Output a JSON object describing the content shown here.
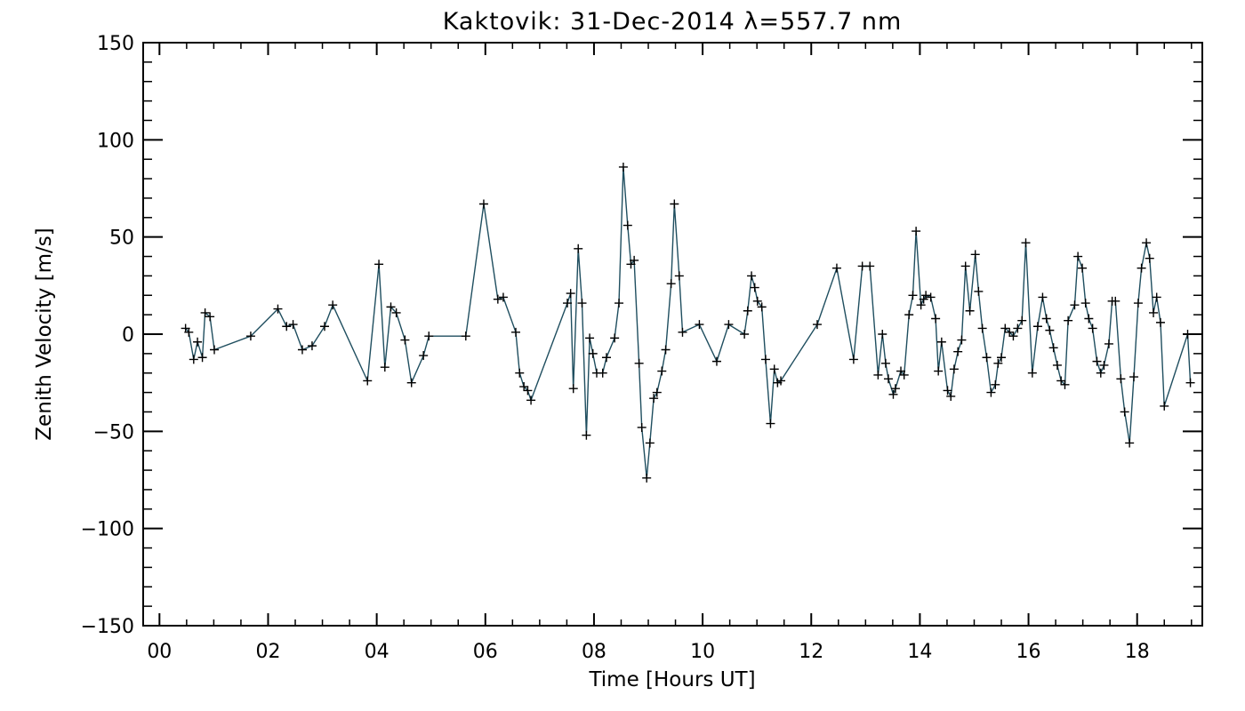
{
  "chart_data": {
    "type": "line",
    "title": "Kaktovik: 31-Dec-2014 λ=557.7 nm",
    "xlabel": "Time [Hours UT]",
    "ylabel": "Zenith Velocity [m/s]",
    "xlim": [
      -0.3,
      19.2
    ],
    "ylim": [
      -150,
      150
    ],
    "x_ticks": [
      {
        "value": 0,
        "label": "00"
      },
      {
        "value": 2,
        "label": "02"
      },
      {
        "value": 4,
        "label": "04"
      },
      {
        "value": 6,
        "label": "06"
      },
      {
        "value": 8,
        "label": "08"
      },
      {
        "value": 10,
        "label": "10"
      },
      {
        "value": 12,
        "label": "12"
      },
      {
        "value": 14,
        "label": "14"
      },
      {
        "value": 16,
        "label": "16"
      },
      {
        "value": 18,
        "label": "18"
      }
    ],
    "y_ticks": [
      {
        "value": 150,
        "label": "150"
      },
      {
        "value": 100,
        "label": "100"
      },
      {
        "value": 50,
        "label": "50"
      },
      {
        "value": 0,
        "label": "0"
      },
      {
        "value": -50,
        "label": "−50"
      },
      {
        "value": -100,
        "label": "−100"
      },
      {
        "value": -150,
        "label": "−150"
      }
    ],
    "grid": false,
    "legend": "none",
    "marker": "plus",
    "colors": {
      "line": "#1f4e5f",
      "marker": "#000000",
      "axes": "#000000"
    },
    "series": [
      {
        "points": [
          [
            0.48,
            3
          ],
          [
            0.54,
            1
          ],
          [
            0.63,
            -13
          ],
          [
            0.7,
            -4
          ],
          [
            0.79,
            -12
          ],
          [
            0.84,
            11
          ],
          [
            0.93,
            9
          ],
          [
            1.01,
            -8
          ],
          [
            1.68,
            -1
          ],
          [
            2.18,
            13
          ],
          [
            2.34,
            4
          ],
          [
            2.46,
            5
          ],
          [
            2.63,
            -8
          ],
          [
            2.81,
            -6
          ],
          [
            3.04,
            4
          ],
          [
            3.19,
            15
          ],
          [
            3.83,
            -24
          ],
          [
            4.04,
            36
          ],
          [
            4.15,
            -17
          ],
          [
            4.26,
            14
          ],
          [
            4.36,
            11
          ],
          [
            4.52,
            -3
          ],
          [
            4.64,
            -25
          ],
          [
            4.86,
            -11
          ],
          [
            4.96,
            -1
          ],
          [
            5.64,
            -1
          ],
          [
            5.97,
            67
          ],
          [
            6.23,
            18
          ],
          [
            6.33,
            19
          ],
          [
            6.56,
            1
          ],
          [
            6.63,
            -20
          ],
          [
            6.71,
            -27
          ],
          [
            6.78,
            -29
          ],
          [
            6.84,
            -34
          ],
          [
            7.51,
            16
          ],
          [
            7.57,
            21
          ],
          [
            7.62,
            -28
          ],
          [
            7.71,
            44
          ],
          [
            7.78,
            16
          ],
          [
            7.86,
            -52
          ],
          [
            7.92,
            -2
          ],
          [
            7.98,
            -10
          ],
          [
            8.05,
            -20
          ],
          [
            8.16,
            -20
          ],
          [
            8.23,
            -12
          ],
          [
            8.38,
            -2
          ],
          [
            8.46,
            16
          ],
          [
            8.54,
            86
          ],
          [
            8.62,
            56
          ],
          [
            8.68,
            36
          ],
          [
            8.74,
            38
          ],
          [
            8.83,
            -15
          ],
          [
            8.88,
            -48
          ],
          [
            8.97,
            -74
          ],
          [
            9.03,
            -56
          ],
          [
            9.1,
            -33
          ],
          [
            9.16,
            -30
          ],
          [
            9.25,
            -19
          ],
          [
            9.32,
            -8
          ],
          [
            9.42,
            26
          ],
          [
            9.48,
            67
          ],
          [
            9.57,
            30
          ],
          [
            9.63,
            1
          ],
          [
            9.94,
            5
          ],
          [
            10.26,
            -14
          ],
          [
            10.48,
            5
          ],
          [
            10.77,
            0
          ],
          [
            10.83,
            12
          ],
          [
            10.9,
            30
          ],
          [
            10.96,
            24
          ],
          [
            11.01,
            17
          ],
          [
            11.09,
            14
          ],
          [
            11.16,
            -13
          ],
          [
            11.25,
            -46
          ],
          [
            11.32,
            -18
          ],
          [
            11.38,
            -25
          ],
          [
            11.44,
            -24
          ],
          [
            12.11,
            5
          ],
          [
            12.47,
            34
          ],
          [
            12.78,
            -13
          ],
          [
            12.94,
            35
          ],
          [
            13.08,
            35
          ],
          [
            13.23,
            -21
          ],
          [
            13.31,
            0
          ],
          [
            13.37,
            -15
          ],
          [
            13.42,
            -23
          ],
          [
            13.51,
            -31
          ],
          [
            13.55,
            -28
          ],
          [
            13.65,
            -19
          ],
          [
            13.71,
            -21
          ],
          [
            13.8,
            10
          ],
          [
            13.87,
            20
          ],
          [
            13.93,
            53
          ],
          [
            14.02,
            15
          ],
          [
            14.07,
            18
          ],
          [
            14.11,
            20
          ],
          [
            14.2,
            19
          ],
          [
            14.29,
            8
          ],
          [
            14.34,
            -19
          ],
          [
            14.4,
            -4
          ],
          [
            14.51,
            -29
          ],
          [
            14.57,
            -32
          ],
          [
            14.63,
            -18
          ],
          [
            14.7,
            -9
          ],
          [
            14.77,
            -3
          ],
          [
            14.84,
            35
          ],
          [
            14.92,
            12
          ],
          [
            15.02,
            41
          ],
          [
            15.08,
            22
          ],
          [
            15.15,
            3
          ],
          [
            15.23,
            -12
          ],
          [
            15.31,
            -30
          ],
          [
            15.39,
            -26
          ],
          [
            15.44,
            -15
          ],
          [
            15.5,
            -12
          ],
          [
            15.57,
            3
          ],
          [
            15.65,
            1
          ],
          [
            15.72,
            -1
          ],
          [
            15.8,
            3
          ],
          [
            15.88,
            7
          ],
          [
            15.95,
            47
          ],
          [
            16.07,
            -20
          ],
          [
            16.17,
            4
          ],
          [
            16.26,
            19
          ],
          [
            16.33,
            8
          ],
          [
            16.39,
            2
          ],
          [
            16.46,
            -7
          ],
          [
            16.53,
            -16
          ],
          [
            16.6,
            -24
          ],
          [
            16.67,
            -26
          ],
          [
            16.73,
            7
          ],
          [
            16.85,
            15
          ],
          [
            16.91,
            40
          ],
          [
            16.99,
            34
          ],
          [
            17.05,
            16
          ],
          [
            17.11,
            8
          ],
          [
            17.18,
            3
          ],
          [
            17.26,
            -14
          ],
          [
            17.33,
            -20
          ],
          [
            17.39,
            -16
          ],
          [
            17.48,
            -5
          ],
          [
            17.54,
            17
          ],
          [
            17.6,
            17
          ],
          [
            17.7,
            -23
          ],
          [
            17.77,
            -40
          ],
          [
            17.86,
            -56
          ],
          [
            17.94,
            -22
          ],
          [
            18.02,
            16
          ],
          [
            18.08,
            34
          ],
          [
            18.17,
            47
          ],
          [
            18.23,
            39
          ],
          [
            18.3,
            11
          ],
          [
            18.36,
            19
          ],
          [
            18.43,
            6
          ],
          [
            18.5,
            -37
          ],
          [
            18.93,
            0
          ],
          [
            18.98,
            -25
          ]
        ]
      }
    ]
  }
}
